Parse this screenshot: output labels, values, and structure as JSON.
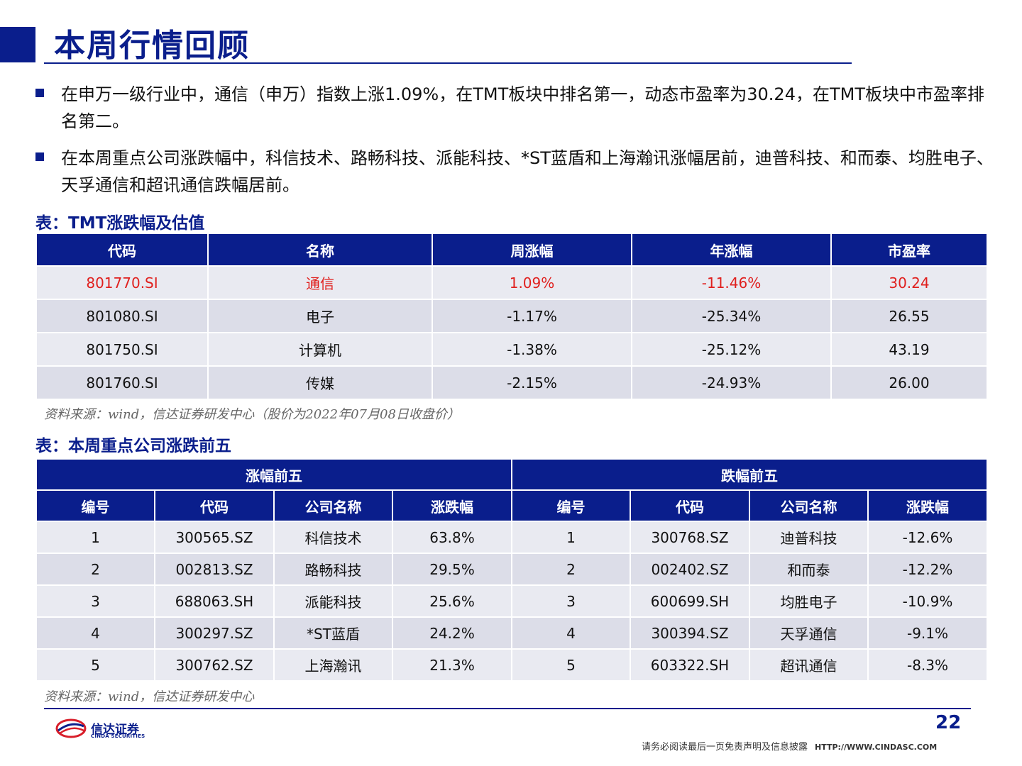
{
  "page": {
    "title": "本周行情回顾",
    "page_number": "22"
  },
  "bullets": [
    "在申万一级行业中，通信（申万）指数上涨1.09%，在TMT板块中排名第一，动态市盈率为30.24，在TMT板块中市盈率排名第二。",
    "在本周重点公司涨跌幅中，科信技术、路畅科技、派能科技、*ST蓝盾和上海瀚讯涨幅居前，迪普科技、和而泰、均胜电子、天孚通信和超讯通信跌幅居前。"
  ],
  "table1": {
    "caption": "表：TMT涨跌幅及估值",
    "headers": [
      "代码",
      "名称",
      "周涨幅",
      "年涨幅",
      "市盈率"
    ],
    "rows": [
      [
        "801770.SI",
        "通信",
        "1.09%",
        "-11.46%",
        "30.24"
      ],
      [
        "801080.SI",
        "电子",
        "-1.17%",
        "-25.34%",
        "26.55"
      ],
      [
        "801750.SI",
        "计算机",
        "-1.38%",
        "-25.12%",
        "43.19"
      ],
      [
        "801760.SI",
        "传媒",
        "-2.15%",
        "-24.93%",
        "26.00"
      ]
    ],
    "source": "资料来源：wind，信达证券研发中心（股价为2022年07月08日收盘价）"
  },
  "table2": {
    "caption": "表：本周重点公司涨跌前五",
    "group_headers": [
      "涨幅前五",
      "跌幅前五"
    ],
    "headers": [
      "编号",
      "代码",
      "公司名称",
      "涨跌幅",
      "编号",
      "代码",
      "公司名称",
      "涨跌幅"
    ],
    "rows": [
      [
        "1",
        "300565.SZ",
        "科信技术",
        "63.8%",
        "1",
        "300768.SZ",
        "迪普科技",
        "-12.6%"
      ],
      [
        "2",
        "002813.SZ",
        "路畅科技",
        "29.5%",
        "2",
        "002402.SZ",
        "和而泰",
        "-12.2%"
      ],
      [
        "3",
        "688063.SH",
        "派能科技",
        "25.6%",
        "3",
        "600699.SH",
        "均胜电子",
        "-10.9%"
      ],
      [
        "4",
        "300297.SZ",
        "*ST蓝盾",
        "24.2%",
        "4",
        "300394.SZ",
        "天孚通信",
        "-9.1%"
      ],
      [
        "5",
        "300762.SZ",
        "上海瀚讯",
        "21.3%",
        "5",
        "603322.SH",
        "超讯通信",
        "-8.3%"
      ]
    ],
    "source": "资料来源：wind，信达证券研发中心"
  },
  "footer": {
    "logo_cn": "信达证券",
    "logo_en": "CINDA SECURITIES",
    "disclaimer": "请务必阅读最后一页免责声明及信息披露",
    "url": "HTTP://WWW.CINDASC.COM"
  },
  "colors": {
    "brand": "#0a1e8c",
    "highlight_row": "#e0201e",
    "logo_red": "#d81e2a"
  }
}
